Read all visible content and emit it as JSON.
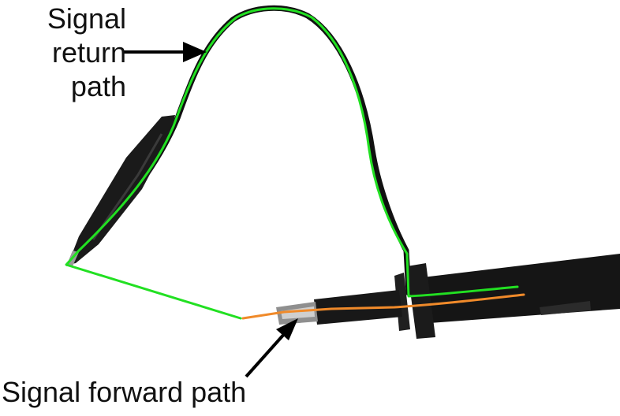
{
  "labels": {
    "signal_return_path": [
      "Signal",
      "return",
      "path"
    ],
    "signal_forward_path": "Signal forward path"
  },
  "colors": {
    "return_path": "#22e022",
    "forward_path": "#f08a2a",
    "probe_body": "#111111",
    "label_text": "#111111",
    "arrow": "#000000"
  },
  "icons": {
    "clip": "alligator-clip-icon",
    "probe": "oscilloscope-probe-icon"
  }
}
